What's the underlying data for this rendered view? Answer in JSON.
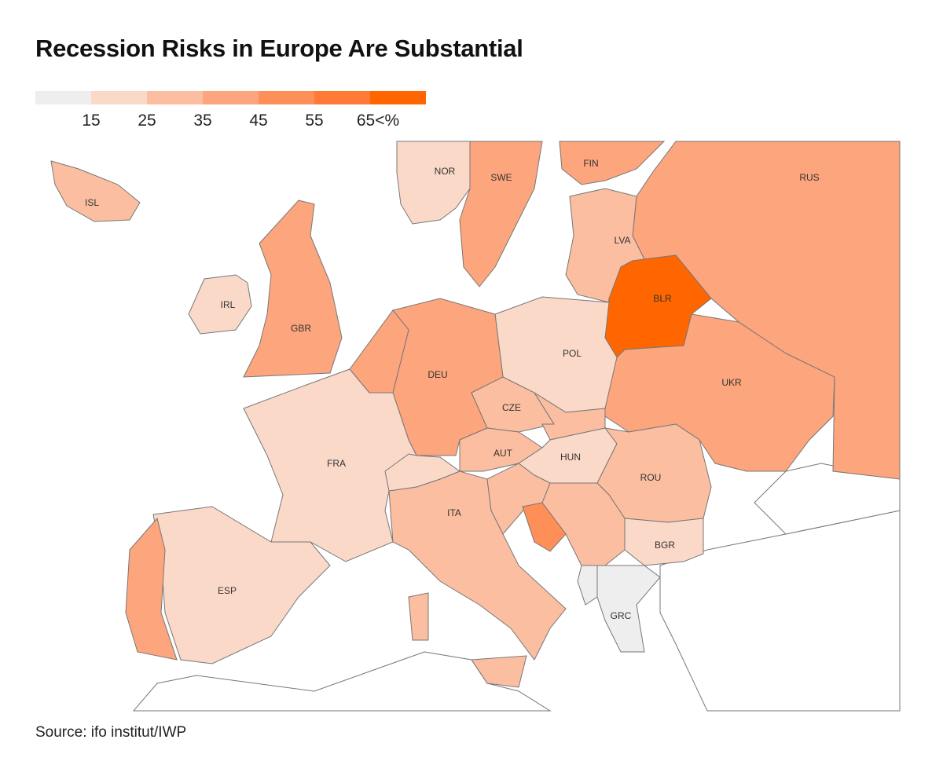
{
  "title": "Recession Risks in Europe Are Substantial",
  "source": "Source: ifo institut/IWP",
  "chart_data": {
    "type": "choropleth",
    "title": "Recession Risks in Europe Are Substantial",
    "legend": {
      "bins": [
        "<15",
        "15-25",
        "25-35",
        "35-45",
        "45-55",
        "55-65",
        ">65"
      ],
      "colors": [
        "#eeeeee",
        "#fbd9c9",
        "#fcbea0",
        "#fda57d",
        "#fe8f58",
        "#ff7a36",
        "#ff6600"
      ],
      "ticks": [
        "15",
        "25",
        "35",
        "45",
        "55",
        "65<%"
      ],
      "unit": "%"
    },
    "countries": [
      {
        "code": "ISL",
        "label": "ISL",
        "bin": "25-35"
      },
      {
        "code": "NOR",
        "label": "NOR",
        "bin": "15-25"
      },
      {
        "code": "SWE",
        "label": "SWE",
        "bin": "35-45"
      },
      {
        "code": "FIN",
        "label": "FIN",
        "bin": "35-45"
      },
      {
        "code": "RUS",
        "label": "RUS",
        "bin": "35-45"
      },
      {
        "code": "BALT",
        "label": "",
        "bin": "25-35"
      },
      {
        "code": "LVA",
        "label": "LVA",
        "bin": "25-35"
      },
      {
        "code": "BLR",
        "label": "BLR",
        "bin": ">65"
      },
      {
        "code": "UKR",
        "label": "UKR",
        "bin": "35-45"
      },
      {
        "code": "POL",
        "label": "POL",
        "bin": "15-25"
      },
      {
        "code": "DEU",
        "label": "DEU",
        "bin": "35-45"
      },
      {
        "code": "GBR",
        "label": "GBR",
        "bin": "35-45"
      },
      {
        "code": "IRL",
        "label": "IRL",
        "bin": "15-25"
      },
      {
        "code": "FRA",
        "label": "FRA",
        "bin": "15-25"
      },
      {
        "code": "ESP",
        "label": "ESP",
        "bin": "15-25"
      },
      {
        "code": "PRT",
        "label": "",
        "bin": "35-45"
      },
      {
        "code": "ITA",
        "label": "ITA",
        "bin": "25-35"
      },
      {
        "code": "BNL",
        "label": "",
        "bin": "35-45"
      },
      {
        "code": "CZE",
        "label": "CZE",
        "bin": "25-35"
      },
      {
        "code": "AUT",
        "label": "AUT",
        "bin": "25-35"
      },
      {
        "code": "CHE",
        "label": "",
        "bin": "15-25"
      },
      {
        "code": "SVK",
        "label": "",
        "bin": "25-35"
      },
      {
        "code": "HUN",
        "label": "HUN",
        "bin": "15-25"
      },
      {
        "code": "ROU",
        "label": "ROU",
        "bin": "25-35"
      },
      {
        "code": "BGR",
        "label": "BGR",
        "bin": "15-25"
      },
      {
        "code": "SRB",
        "label": "",
        "bin": "25-35"
      },
      {
        "code": "HRV",
        "label": "",
        "bin": "25-35"
      },
      {
        "code": "BIH",
        "label": "",
        "bin": "45-55"
      },
      {
        "code": "GRC",
        "label": "GRC",
        "bin": "<15"
      },
      {
        "code": "MKD",
        "label": "",
        "bin": "<15"
      }
    ]
  }
}
